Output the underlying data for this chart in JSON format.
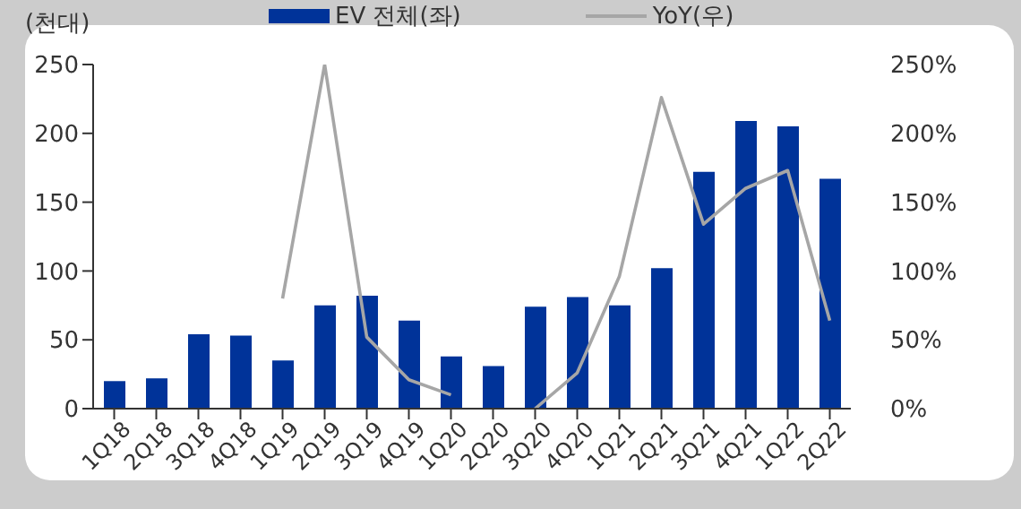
{
  "chart_data": {
    "type": "bar",
    "ylabel": "(천대)",
    "categories": [
      "1Q18",
      "2Q18",
      "3Q18",
      "4Q18",
      "1Q19",
      "2Q19",
      "3Q19",
      "4Q19",
      "1Q20",
      "2Q20",
      "3Q20",
      "4Q20",
      "1Q21",
      "2Q21",
      "3Q21",
      "4Q21",
      "1Q22",
      "2Q22"
    ],
    "series": [
      {
        "name": "EV 전체(좌)",
        "color": "#003399",
        "values": [
          20,
          22,
          54,
          53,
          35,
          75,
          82,
          64,
          38,
          31,
          74,
          81,
          75,
          102,
          172,
          209,
          205,
          167
        ]
      },
      {
        "name": "YoY(우)",
        "type": "line",
        "axis": "y2",
        "color": "#a6a6a6",
        "values": [
          null,
          null,
          null,
          null,
          80,
          250,
          52,
          21,
          10,
          null,
          0,
          26,
          96,
          226,
          134,
          160,
          173,
          64
        ]
      }
    ],
    "ylim": [
      0,
      250
    ],
    "yticks": [
      0,
      50,
      100,
      150,
      200,
      250
    ],
    "y2lim": [
      0,
      250
    ],
    "y2ticks": [
      {
        "value": 0,
        "label": "0%"
      },
      {
        "value": 50,
        "label": "50%"
      },
      {
        "value": 100,
        "label": "100%"
      },
      {
        "value": 150,
        "label": "150%"
      },
      {
        "value": 200,
        "label": "200%"
      },
      {
        "value": 250,
        "label": "250%"
      }
    ],
    "grid": false,
    "legend": "top",
    "marker": "none",
    "line_style": "solid"
  }
}
